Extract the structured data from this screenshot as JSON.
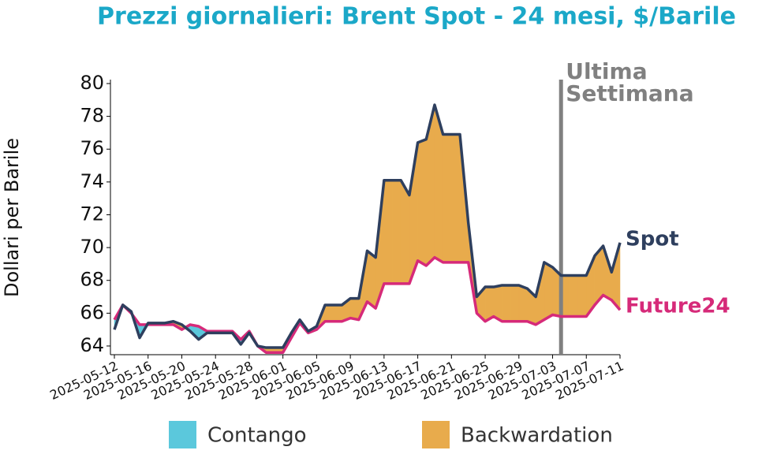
{
  "chart_data": {
    "type": "line",
    "title": "Prezzi giornalieri: Brent Spot - 24 mesi, $/Barile",
    "y_label": "Dollari per Barile",
    "x": [
      "2025-05-12",
      "2025-05-13",
      "2025-05-14",
      "2025-05-15",
      "2025-05-16",
      "2025-05-17",
      "2025-05-18",
      "2025-05-19",
      "2025-05-20",
      "2025-05-21",
      "2025-05-22",
      "2025-05-23",
      "2025-05-24",
      "2025-05-25",
      "2025-05-26",
      "2025-05-27",
      "2025-05-28",
      "2025-05-29",
      "2025-05-30",
      "2025-05-31",
      "2025-06-01",
      "2025-06-02",
      "2025-06-03",
      "2025-06-04",
      "2025-06-05",
      "2025-06-06",
      "2025-06-07",
      "2025-06-08",
      "2025-06-09",
      "2025-06-10",
      "2025-06-11",
      "2025-06-12",
      "2025-06-13",
      "2025-06-14",
      "2025-06-15",
      "2025-06-16",
      "2025-06-17",
      "2025-06-18",
      "2025-06-19",
      "2025-06-20",
      "2025-06-21",
      "2025-06-22",
      "2025-06-23",
      "2025-06-24",
      "2025-06-25",
      "2025-06-26",
      "2025-06-27",
      "2025-06-28",
      "2025-06-29",
      "2025-06-30",
      "2025-07-01",
      "2025-07-02",
      "2025-07-03",
      "2025-07-04",
      "2025-07-05",
      "2025-07-06",
      "2025-07-07",
      "2025-07-08",
      "2025-07-09",
      "2025-07-10",
      "2025-07-11"
    ],
    "series": [
      {
        "name": "Spot",
        "color": "#2e3f5e",
        "values": [
          65.0,
          66.5,
          66.1,
          64.5,
          65.4,
          65.4,
          65.4,
          65.5,
          65.3,
          64.9,
          64.4,
          64.8,
          64.8,
          64.8,
          64.8,
          64.1,
          64.8,
          64.0,
          63.9,
          63.9,
          63.9,
          64.8,
          65.6,
          64.9,
          65.2,
          66.5,
          66.5,
          66.5,
          66.9,
          66.9,
          69.8,
          69.4,
          74.1,
          74.1,
          74.1,
          73.2,
          76.4,
          76.6,
          78.7,
          76.9,
          76.9,
          76.9,
          71.5,
          67.0,
          67.6,
          67.6,
          67.7,
          67.7,
          67.7,
          67.5,
          67.0,
          69.1,
          68.8,
          68.3,
          68.3,
          68.3,
          68.3,
          69.5,
          70.1,
          68.5,
          70.3
        ]
      },
      {
        "name": "Future24",
        "color": "#d62a79",
        "values": [
          65.6,
          66.5,
          66.0,
          65.3,
          65.3,
          65.3,
          65.3,
          65.3,
          65.0,
          65.3,
          65.2,
          64.9,
          64.9,
          64.9,
          64.9,
          64.4,
          64.9,
          64.0,
          63.6,
          63.6,
          63.6,
          64.5,
          65.4,
          64.8,
          65.0,
          65.5,
          65.5,
          65.5,
          65.7,
          65.6,
          66.7,
          66.3,
          67.8,
          67.8,
          67.8,
          67.8,
          69.2,
          68.9,
          69.4,
          69.1,
          69.1,
          69.1,
          69.1,
          66.0,
          65.5,
          65.8,
          65.5,
          65.5,
          65.5,
          65.5,
          65.3,
          65.6,
          65.9,
          65.8,
          65.8,
          65.8,
          65.8,
          66.5,
          67.1,
          66.8,
          66.2
        ]
      }
    ],
    "fill_legend": [
      {
        "name": "Contango",
        "color": "#5bc8dc"
      },
      {
        "name": "Backwardation",
        "color": "#e8ab4c"
      }
    ],
    "marker": {
      "x": "2025-07-04",
      "label_lines": [
        "Ultima",
        "Settimana"
      ],
      "color": "#808080"
    },
    "xlim": [
      "2025-05-12",
      "2025-07-11"
    ],
    "xticks": [
      "2025-05-12",
      "2025-05-16",
      "2025-05-20",
      "2025-05-24",
      "2025-05-28",
      "2025-06-01",
      "2025-06-05",
      "2025-06-09",
      "2025-06-13",
      "2025-06-17",
      "2025-06-21",
      "2025-06-25",
      "2025-06-29",
      "2025-07-03",
      "2025-07-07",
      "2025-07-11"
    ],
    "ylim": [
      63.47,
      80.24
    ],
    "yticks": [
      64,
      66,
      68,
      70,
      72,
      74,
      76,
      78,
      80
    ]
  }
}
